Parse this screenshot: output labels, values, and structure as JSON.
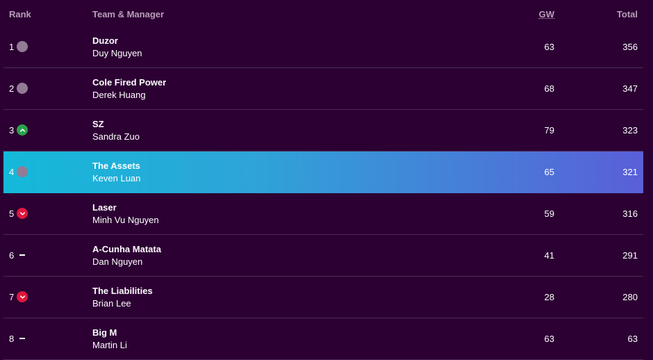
{
  "header": {
    "rank": "Rank",
    "team": "Team & Manager",
    "gw": "GW",
    "total": "Total"
  },
  "rows": [
    {
      "rank": "1",
      "movement": "same",
      "team": "Duzor",
      "manager": "Duy Nguyen",
      "gw": "63",
      "total": "356"
    },
    {
      "rank": "2",
      "movement": "same",
      "team": "Cole Fired Power",
      "manager": "Derek Huang",
      "gw": "68",
      "total": "347"
    },
    {
      "rank": "3",
      "movement": "up",
      "team": "SZ",
      "manager": "Sandra Zuo",
      "gw": "79",
      "total": "323"
    },
    {
      "rank": "4",
      "movement": "same",
      "team": "The Assets",
      "manager": "Keven Luan",
      "gw": "65",
      "total": "321",
      "highlighted": true
    },
    {
      "rank": "5",
      "movement": "down",
      "team": "Laser",
      "manager": "Minh Vu Nguyen",
      "gw": "59",
      "total": "316"
    },
    {
      "rank": "6",
      "movement": "none",
      "team": "A-Cunha Matata",
      "manager": "Dan Nguyen",
      "gw": "41",
      "total": "291"
    },
    {
      "rank": "7",
      "movement": "down",
      "team": "The Liabilities",
      "manager": "Brian Lee",
      "gw": "28",
      "total": "280"
    },
    {
      "rank": "8",
      "movement": "none",
      "team": "Big M",
      "manager": "Martin Li",
      "gw": "63",
      "total": "63"
    }
  ],
  "colors": {
    "background": "#2c0033",
    "highlight_start": "#14b9d9",
    "highlight_end": "#5a5fd8",
    "up": "#2aa24b",
    "down": "#e0163e",
    "same": "#937b95"
  }
}
